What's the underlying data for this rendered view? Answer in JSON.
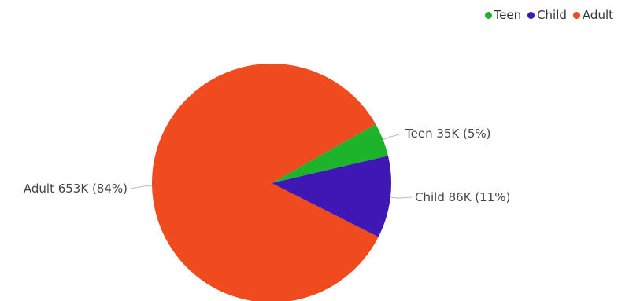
{
  "chart_data": {
    "type": "pie",
    "title": "",
    "slices": [
      {
        "name": "Adult",
        "value": 653,
        "label": "Adult 653K (84%)",
        "color": "#F04B1F"
      },
      {
        "name": "Teen",
        "value": 35,
        "label": "Teen 35K (5%)",
        "color": "#1DB32B"
      },
      {
        "name": "Child",
        "value": 86,
        "label": "Child 86K (11%)",
        "color": "#3E17B5"
      }
    ],
    "legend": {
      "position": "top-right",
      "items": [
        {
          "name": "Teen",
          "color": "#1DB32B"
        },
        {
          "name": "Child",
          "color": "#3E17B5"
        },
        {
          "name": "Adult",
          "color": "#F04B1F"
        }
      ]
    }
  }
}
